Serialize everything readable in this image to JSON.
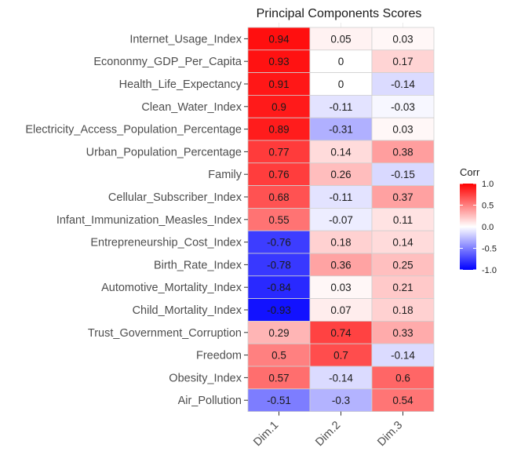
{
  "chart_data": {
    "type": "heatmap",
    "title": "Principal Components Scores",
    "columns": [
      "Dim.1",
      "Dim.2",
      "Dim.3"
    ],
    "rows": [
      "Internet_Usage_Index",
      "Econonmy_GDP_Per_Capita",
      "Health_Life_Expectancy",
      "Clean_Water_Index",
      "Electricity_Access_Population_Percentage",
      "Urban_Population_Percentage",
      "Family",
      "Cellular_Subscriber_Index",
      "Infant_Immunization_Measles_Index",
      "Entrepreneurship_Cost_Index",
      "Birth_Rate_Index",
      "Automotive_Mortality_Index",
      "Child_Mortality_Index",
      "Trust_Government_Corruption",
      "Freedom",
      "Obesity_Index",
      "Air_Pollution"
    ],
    "values": [
      [
        0.94,
        0.05,
        0.03
      ],
      [
        0.93,
        0,
        0.17
      ],
      [
        0.91,
        0,
        -0.14
      ],
      [
        0.9,
        -0.11,
        -0.03
      ],
      [
        0.89,
        -0.31,
        0.03
      ],
      [
        0.77,
        0.14,
        0.38
      ],
      [
        0.76,
        0.26,
        -0.15
      ],
      [
        0.68,
        -0.11,
        0.37
      ],
      [
        0.55,
        -0.07,
        0.11
      ],
      [
        -0.76,
        0.18,
        0.14
      ],
      [
        -0.78,
        0.36,
        0.25
      ],
      [
        -0.84,
        0.03,
        0.21
      ],
      [
        -0.93,
        0.07,
        0.18
      ],
      [
        0.29,
        0.74,
        0.33
      ],
      [
        0.5,
        0.7,
        -0.14
      ],
      [
        0.57,
        -0.14,
        0.6
      ],
      [
        -0.51,
        -0.3,
        0.54
      ]
    ],
    "legend": {
      "title": "Corr",
      "ticks": [
        "1.0",
        "0.5",
        "0.0",
        "-0.5",
        "-1.0"
      ],
      "range": [
        -1,
        1
      ],
      "placement": "right"
    },
    "colors": {
      "high": "#ff0000",
      "mid": "#ffffff",
      "low": "#0000ff",
      "grid": "#d0d0d0"
    }
  }
}
